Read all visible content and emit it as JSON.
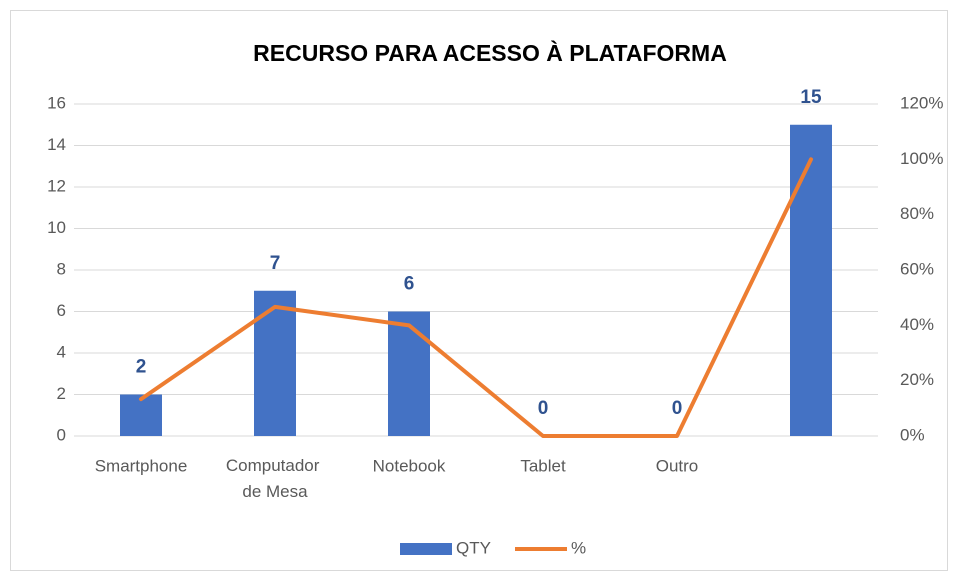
{
  "chart_data": {
    "type": "bar_line",
    "title": "RECURSO PARA ACESSO À PLATAFORMA",
    "categories": [
      "Smartphone",
      "Computador de Mesa",
      "Notebook",
      "Tablet",
      "Outro",
      null
    ],
    "series": [
      {
        "name": "QTY",
        "color": "#4472c4",
        "values": [
          2,
          7,
          6,
          0,
          0,
          15
        ]
      },
      {
        "name": "%",
        "color": "#ed7d31",
        "axis": "y2",
        "values": [
          13.33,
          46.67,
          40,
          0,
          0,
          100
        ]
      }
    ],
    "ylim": [
      0,
      16
    ],
    "yticks": [
      0,
      2,
      4,
      6,
      8,
      10,
      12,
      14,
      16
    ],
    "y2lim": [
      0,
      120
    ],
    "y2ticks": [
      {
        "value": 0,
        "label": "0%"
      },
      {
        "value": 20,
        "label": "20%"
      },
      {
        "value": 40,
        "label": "40%"
      },
      {
        "value": 60,
        "label": "60%"
      },
      {
        "value": 80,
        "label": "80%"
      },
      {
        "value": 100,
        "label": "100%"
      },
      {
        "value": 120,
        "label": "120%"
      }
    ],
    "grid": true,
    "legend": "bottom"
  }
}
